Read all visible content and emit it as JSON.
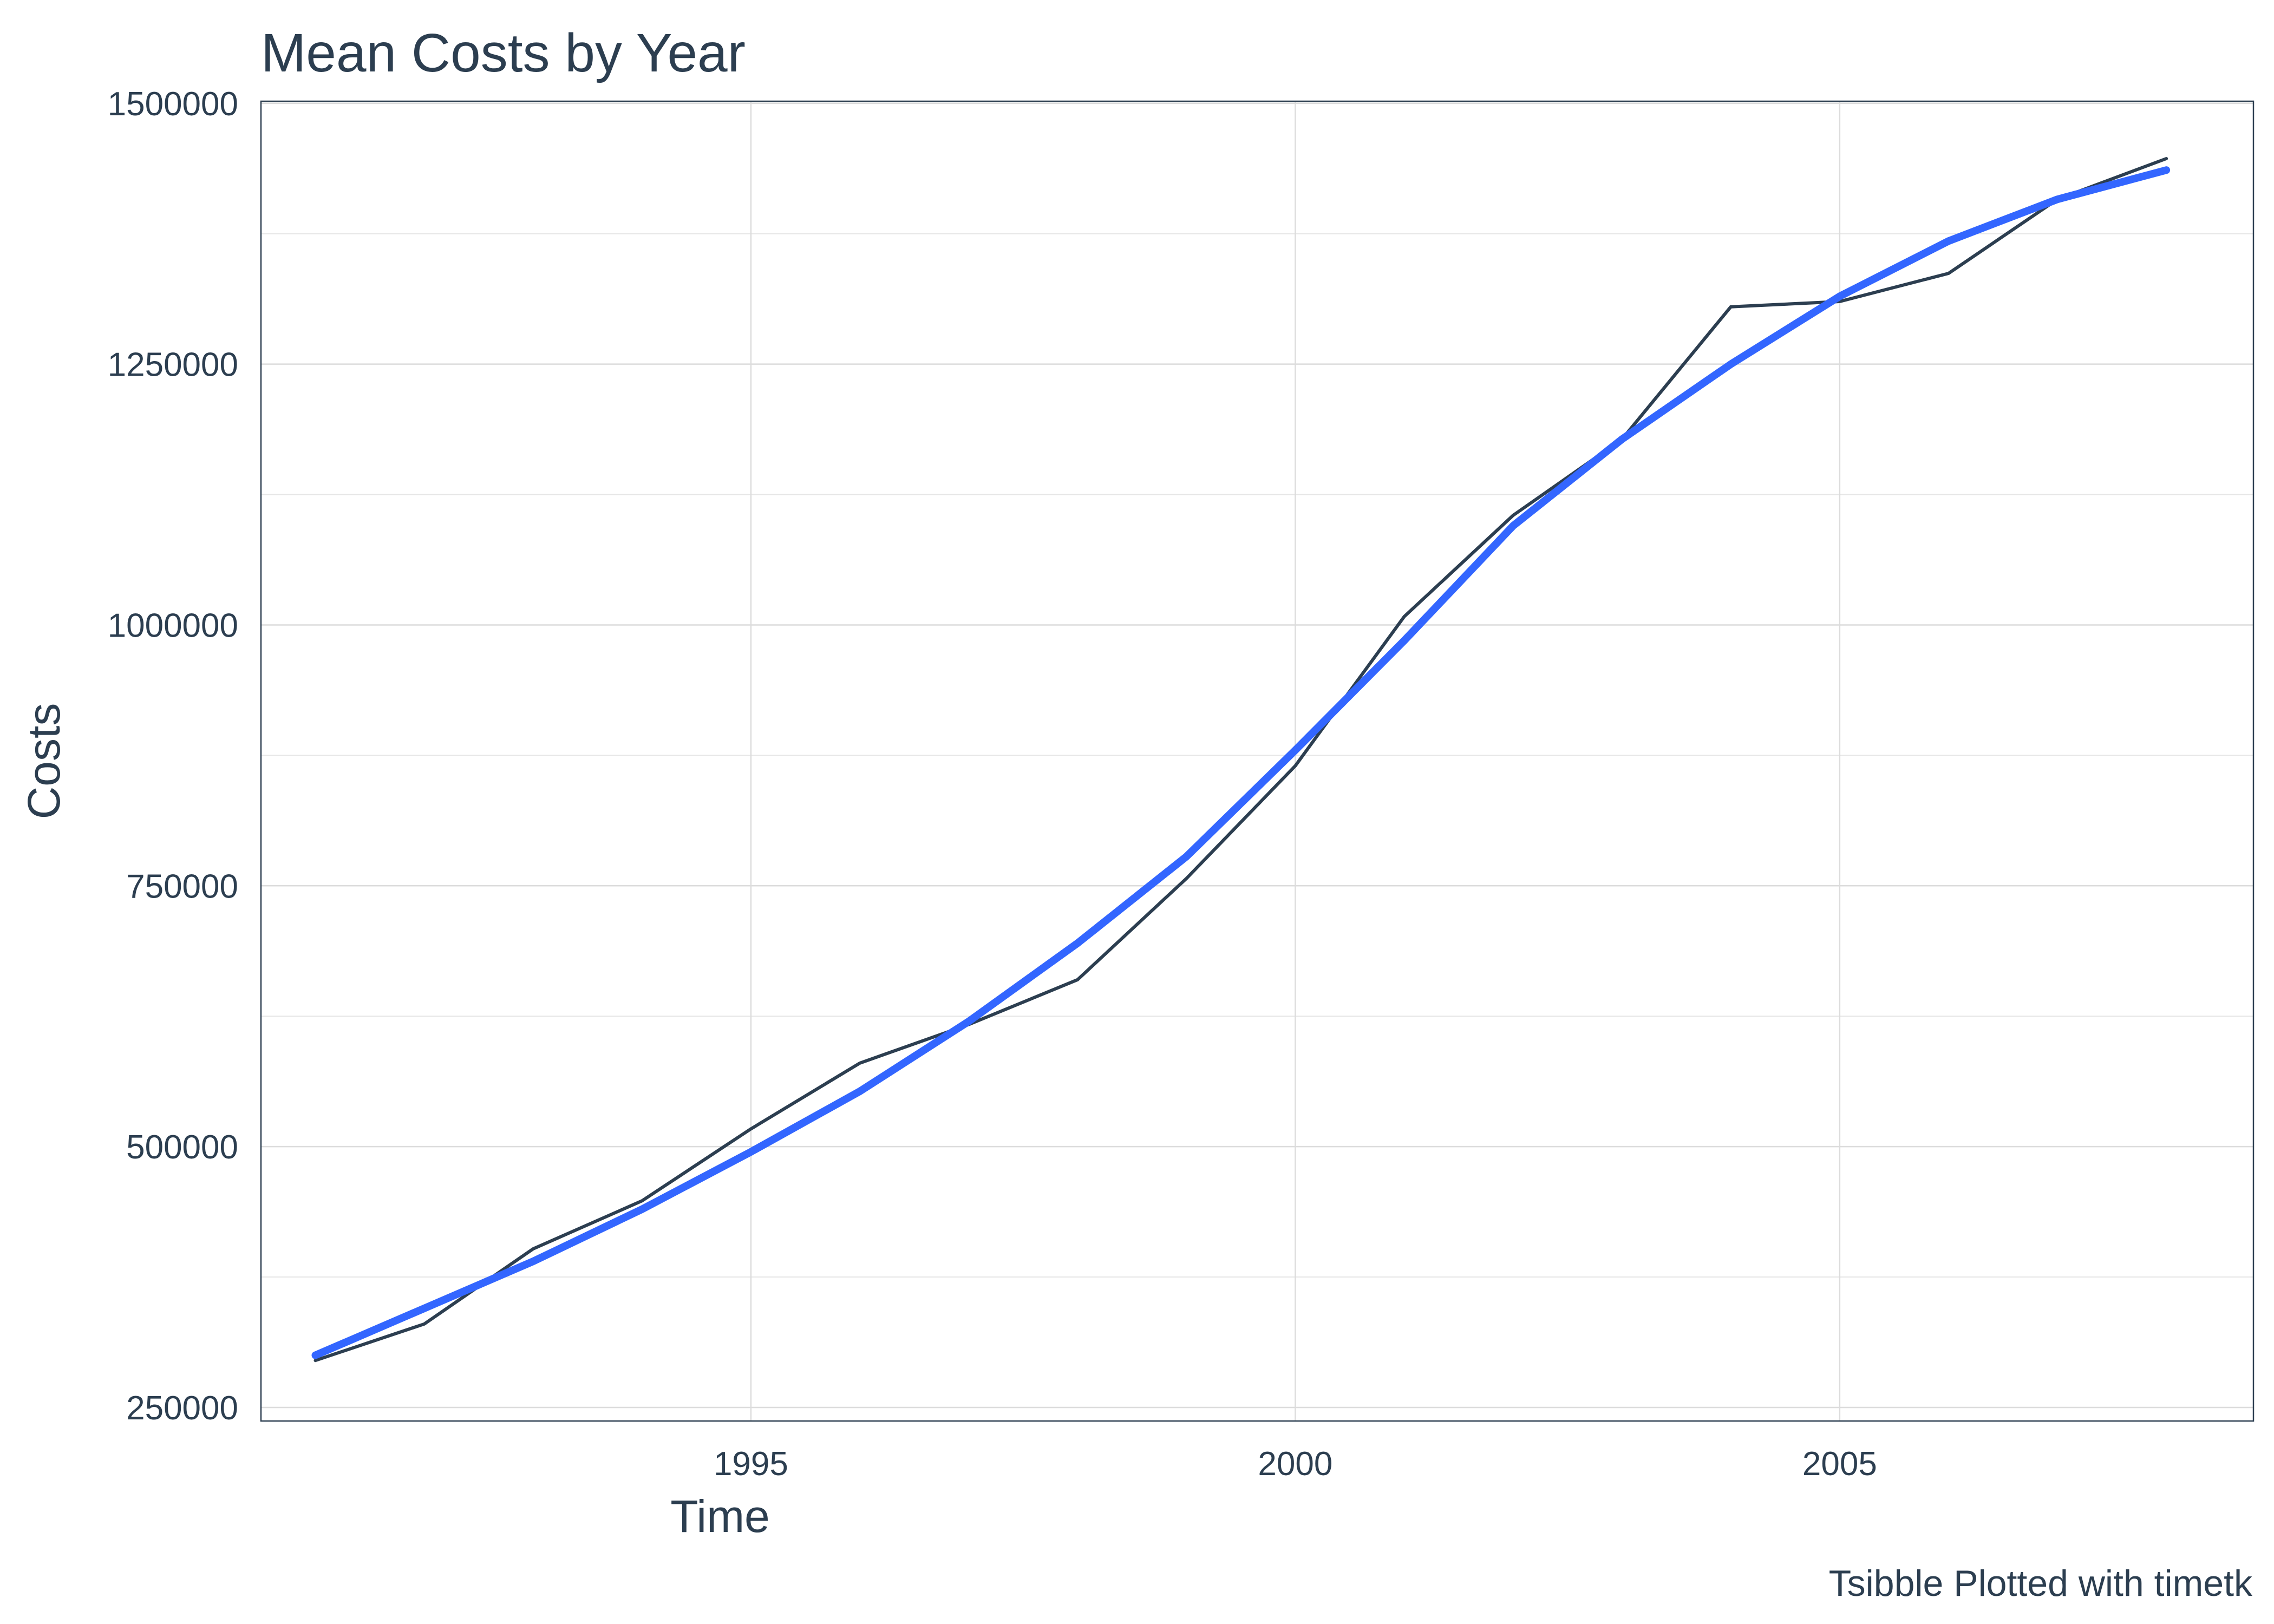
{
  "chart_data": {
    "type": "line",
    "title": "Mean Costs by Year",
    "xlabel": "Time",
    "ylabel": "Costs",
    "caption": "Tsibble Plotted with timetk",
    "xlim": [
      1990.5,
      2008.8
    ],
    "ylim": [
      237000,
      1502000
    ],
    "x_ticks": [
      1995,
      2000,
      2005
    ],
    "y_ticks": [
      250000,
      500000,
      750000,
      1000000,
      1250000,
      1500000
    ],
    "y_tick_labels": [
      "250000",
      "500000",
      "750000",
      "1000000",
      "1250000",
      "1500000"
    ],
    "x_tick_labels": [
      "1995",
      "2000",
      "2005"
    ],
    "grid": true,
    "legend": "none",
    "series": [
      {
        "color": "#2c3e50",
        "x": [
          1991,
          1992,
          1993,
          1994,
          1995,
          1996,
          1997,
          1998,
          1999,
          2000,
          2001,
          2002,
          2003,
          2004,
          2005,
          2006,
          2007,
          2008
        ],
        "values": [
          295000,
          330000,
          402000,
          448000,
          517000,
          580000,
          617000,
          660000,
          757000,
          865000,
          1008000,
          1105000,
          1178000,
          1305000,
          1310000,
          1337000,
          1408000,
          1447000
        ]
      },
      {
        "color": "#3366ff",
        "x": [
          1991,
          1992,
          1993,
          1994,
          1995,
          1996,
          1997,
          1998,
          1999,
          2000,
          2001,
          2002,
          2003,
          2004,
          2005,
          2006,
          2007,
          2008
        ],
        "values": [
          300000,
          345000,
          390000,
          440000,
          495000,
          553000,
          620000,
          695000,
          778000,
          880000,
          985000,
          1095000,
          1178000,
          1250000,
          1315000,
          1368000,
          1408000,
          1436000
        ]
      }
    ]
  }
}
